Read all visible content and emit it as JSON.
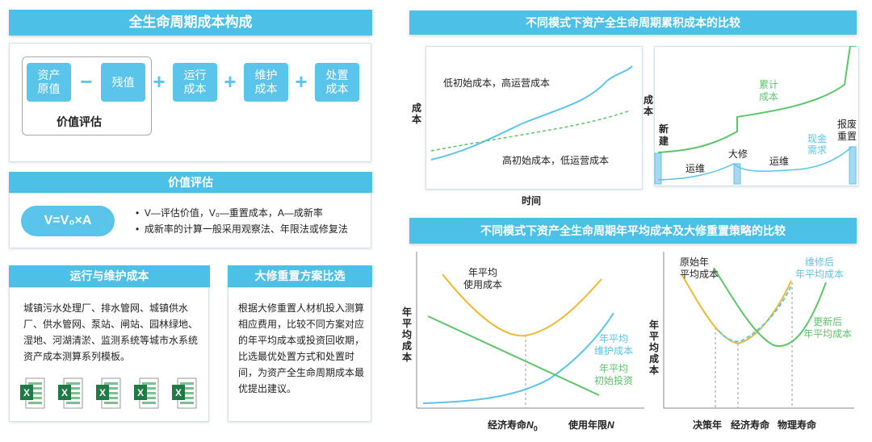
{
  "left": {
    "composition": {
      "title": "全生命周期成本构成",
      "boxes": [
        "资产\n原值",
        "残值",
        "运行\n成本",
        "维护\n成本",
        "处置\n成本"
      ],
      "operators": [
        "−",
        "+",
        "+",
        "+"
      ],
      "subtitle": "价值评估"
    },
    "valuation": {
      "title": "价值评估",
      "formula": "V=V₀×A",
      "bullets": [
        "V—评估价值，V₀—重置成本，A—成新率",
        "成新率的计算一般采用观察法、年限法或修复法"
      ]
    },
    "om_cost": {
      "title": "运行与维护成本",
      "text": "城镇污水处理厂、排水管网、城镇供水厂、供水管网、泵站、闸站、园林绿地、湿地、河湖清淤、监测系统等城市水系统资产成本测算系列模板。",
      "icon_count": 5,
      "icon_letter": "X"
    },
    "overhaul": {
      "title": "大修重置方案比选",
      "text": "根据大修重置人材机投入测算相应费用，比较不同方案对应的年平均成本或投资回收期，比选最优处置方式和处置时间，为资产全生命周期成本最优提出建议。"
    }
  },
  "right": {
    "cumulative": {
      "title": "不同模式下资产全生命周期累积成本的比较",
      "left_chart": {
        "ylabel": "成本",
        "xlabel": "时间",
        "label_high_op": "低初始成本，高运营成本",
        "label_low_op": "高初始成本，低运营成本"
      },
      "right_chart": {
        "ylabel": "成本",
        "label_new": "新建",
        "label_cum": "累计\n成本",
        "label_overhaul": "大修",
        "label_op1": "运维",
        "label_op2": "运维",
        "label_cash": "现金\n需求",
        "label_scrap": "报废\n重置"
      }
    },
    "annual": {
      "title": "不同模式下资产全生命周期年平均成本及大修重置策略的比较",
      "left_chart": {
        "ylabel": "年平均成本",
        "label_use": "年平均\n使用成本",
        "label_maint": "年平均\n维护成本",
        "label_invest": "年平均\n初始投资",
        "x_econ": "经济寿命",
        "x_econ_sym": "N",
        "x_econ_sub": "0",
        "x_years": "使用年限",
        "x_years_sym": "N"
      },
      "right_chart": {
        "ylabel": "年平均成本",
        "label_orig": "原始年\n平均成本",
        "label_after_repair": "维修后\n年平均成本",
        "label_after_renew": "更新后\n年平均成本",
        "x_decision": "决策年",
        "x_econ": "经济寿命",
        "x_physical": "物理寿命"
      }
    }
  },
  "colors": {
    "accent": "#4cc0e6",
    "box": "#5bc4ea",
    "yellow": "#f2b830",
    "green": "#5ec46a",
    "blue": "#5bc4ea",
    "excel_green": "#1e7b45"
  }
}
